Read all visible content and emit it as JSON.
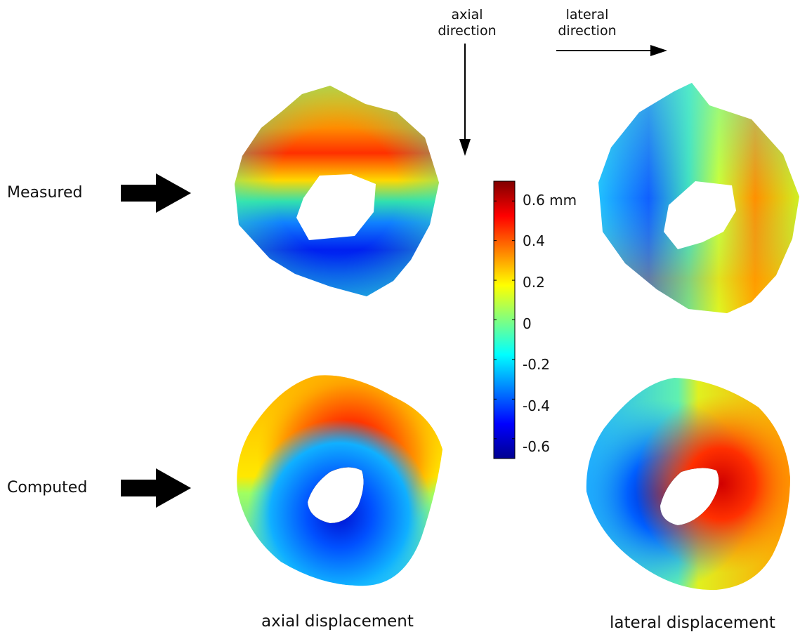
{
  "rows": {
    "measured_label": "Measured",
    "computed_label": "Computed"
  },
  "directions": {
    "axial_line1": "axial",
    "axial_line2": "direction",
    "lateral_line1": "lateral",
    "lateral_line2": "direction"
  },
  "columns": {
    "axial_label": "axial displacement",
    "lateral_label": "lateral displacement"
  },
  "colorbar": {
    "min": -0.7,
    "max": 0.7,
    "unit": "mm",
    "ticks": [
      "0.6 mm",
      "0.4",
      "0.2",
      "0",
      "-0.2",
      "-0.4",
      "-0.6"
    ],
    "colormap": [
      "#00008f",
      "#0000ff",
      "#0080ff",
      "#00ffff",
      "#80ff80",
      "#ffff00",
      "#ff8000",
      "#ff0000",
      "#800000"
    ]
  },
  "palette": {
    "arrow": "#000000",
    "background": "#ffffff"
  }
}
